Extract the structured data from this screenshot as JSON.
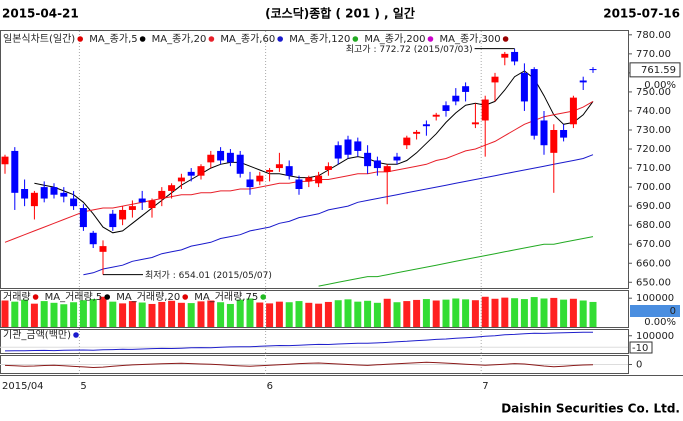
{
  "header": {
    "start": "2015-04-21",
    "title": "(코스닥)종합 ( 201 ) , 일간",
    "end": "2015-07-16"
  },
  "footer": "Daishin Securities Co. Ltd.",
  "chart_data": [
    {
      "type": "candlestick",
      "legend_title": "일본식차트(일간)",
      "legend_color": "#e00000",
      "up_color": "#ff0000",
      "down_color": "#0000ff",
      "categories": [
        "2015/04",
        null,
        null,
        null,
        null,
        null,
        null,
        null,
        "5",
        null,
        null,
        null,
        null,
        null,
        null,
        null,
        null,
        null,
        null,
        null,
        null,
        null,
        null,
        null,
        null,
        null,
        null,
        "6",
        null,
        null,
        null,
        null,
        null,
        null,
        null,
        null,
        null,
        null,
        null,
        null,
        null,
        null,
        null,
        null,
        null,
        null,
        null,
        null,
        null,
        "7",
        null,
        null,
        null,
        null,
        null,
        null,
        null,
        null,
        null,
        null,
        null
      ],
      "open": [
        712,
        719,
        699,
        690,
        700,
        700,
        697,
        694,
        689,
        676,
        666,
        686,
        683,
        688,
        694,
        689,
        694,
        698,
        703,
        708,
        706,
        713,
        719,
        718,
        717,
        704,
        703,
        708,
        710,
        711,
        704,
        703,
        702,
        709,
        722,
        725,
        724,
        718,
        714,
        708,
        716,
        722,
        728,
        733,
        737,
        743,
        748,
        753,
        733,
        735,
        755,
        768,
        771,
        760,
        762,
        735,
        718,
        730,
        733,
        756,
        762
      ],
      "high": [
        717,
        721,
        704,
        698,
        703,
        702,
        700,
        698,
        691,
        677,
        672,
        688,
        690,
        693,
        698,
        694,
        700,
        702,
        707,
        710,
        712,
        719,
        721,
        720,
        719,
        708,
        708,
        710,
        718,
        714,
        706,
        706,
        708,
        713,
        724,
        727,
        726,
        722,
        716,
        712,
        718,
        727,
        730,
        735,
        739,
        745,
        752,
        755,
        744,
        748,
        760,
        771,
        772.72,
        765,
        763,
        740,
        733,
        733,
        748,
        758,
        763
      ],
      "low": [
        707,
        688,
        690,
        683,
        692,
        694,
        692,
        688,
        677,
        668,
        654.01,
        677,
        680,
        684,
        688,
        684,
        690,
        694,
        699,
        703,
        704,
        710,
        712,
        711,
        705,
        696,
        701,
        703,
        708,
        704,
        696,
        700,
        700,
        706,
        712,
        715,
        716,
        707,
        706,
        691,
        712,
        720,
        725,
        727,
        735,
        737,
        743,
        745,
        731,
        716,
        745,
        764,
        764,
        740,
        725,
        717,
        697,
        724,
        731,
        751,
        760
      ],
      "close": [
        716,
        697,
        694,
        697,
        694,
        696,
        695,
        690,
        679,
        670,
        669,
        679,
        688,
        690,
        692,
        693,
        698,
        701,
        705,
        706,
        711,
        717,
        714,
        713,
        707,
        700,
        706,
        709,
        712,
        706,
        699,
        705,
        706,
        711,
        715,
        717,
        719,
        711,
        710,
        711,
        714,
        726,
        729,
        732,
        738,
        740,
        745,
        750,
        734,
        746,
        758,
        770,
        766,
        745,
        727,
        722,
        730,
        726,
        747,
        755,
        761.59
      ],
      "series": [
        {
          "name": "MA_종가,5",
          "color": "#000000",
          "values": [
            null,
            null,
            null,
            702,
            701,
            700,
            698,
            696,
            692,
            686,
            679,
            676,
            677,
            681,
            685,
            689,
            693,
            697,
            701,
            704,
            707,
            710,
            712,
            713,
            713,
            711,
            709,
            707,
            707,
            706,
            705,
            705,
            706,
            709,
            712,
            715,
            716,
            715,
            713,
            712,
            712,
            714,
            718,
            723,
            728,
            734,
            739,
            743,
            744,
            743,
            745,
            751,
            758,
            761,
            757,
            748,
            738,
            733,
            734,
            738,
            745
          ]
        },
        {
          "name": "MA_종가,20",
          "color": "#e8202a",
          "values": [
            671,
            673,
            675,
            677,
            679,
            681,
            683,
            685,
            687,
            688,
            689,
            689,
            690,
            691,
            692,
            693,
            694,
            695,
            696,
            696,
            697,
            697,
            698,
            698,
            699,
            699,
            700,
            701,
            702,
            702,
            703,
            703,
            704,
            704,
            705,
            706,
            707,
            707,
            708,
            708,
            709,
            710,
            711,
            712,
            714,
            715,
            717,
            719,
            720,
            722,
            724,
            727,
            730,
            733,
            735,
            737,
            738,
            739,
            740,
            742,
            745
          ]
        },
        {
          "name": "MA_종가,60",
          "color": "#1a1acc",
          "values": [
            null,
            null,
            null,
            null,
            null,
            null,
            null,
            null,
            654,
            655,
            657,
            658,
            659,
            661,
            662,
            663,
            665,
            666,
            667,
            669,
            670,
            671,
            673,
            674,
            675,
            677,
            678,
            679,
            681,
            682,
            684,
            685,
            686,
            688,
            689,
            690,
            692,
            693,
            694,
            695,
            696,
            697,
            698,
            699,
            700,
            701,
            702,
            703,
            704,
            705,
            706,
            707,
            708,
            709,
            710,
            711,
            712,
            713,
            714,
            715,
            717
          ]
        },
        {
          "name": "MA_종가,120",
          "color": "#22aa22",
          "values": [
            null,
            null,
            null,
            null,
            null,
            null,
            null,
            null,
            null,
            null,
            null,
            null,
            null,
            null,
            null,
            null,
            null,
            null,
            null,
            null,
            null,
            null,
            null,
            null,
            null,
            null,
            null,
            null,
            null,
            null,
            null,
            null,
            648,
            649,
            650,
            651,
            652,
            653,
            653,
            654,
            655,
            656,
            657,
            658,
            659,
            660,
            661,
            662,
            663,
            664,
            665,
            666,
            667,
            668,
            669,
            670,
            670,
            671,
            672,
            673,
            674
          ]
        }
      ],
      "legend_extra": [
        {
          "name": "MA_종가,200",
          "color": "#cc00cc"
        },
        {
          "name": "MA_종가,300",
          "color": "#990000"
        }
      ],
      "annotations": [
        {
          "label": "최고가 : 772.72 (2015/07/03)",
          "value": 772.72,
          "color": "#e00000"
        },
        {
          "label": "최저가 : 654.01 (2015/05/07)",
          "value": 654.01,
          "color": "#1a1acc"
        }
      ],
      "last": 761.59,
      "change": "0.00%",
      "ylim": [
        647,
        782
      ],
      "yticks": [
        {
          "value": 780,
          "label": "780.00"
        },
        {
          "value": 770,
          "label": "770.00"
        },
        {
          "value": 760,
          "label": "760.00"
        },
        {
          "value": 750,
          "label": "750.00"
        },
        {
          "value": 740,
          "label": "740.00"
        },
        {
          "value": 730,
          "label": "730.00"
        },
        {
          "value": 720,
          "label": "720.00"
        },
        {
          "value": 710,
          "label": "710.00"
        },
        {
          "value": 700,
          "label": "700.00"
        },
        {
          "value": 690,
          "label": "690.00"
        },
        {
          "value": 680,
          "label": "680.00"
        },
        {
          "value": 670,
          "label": "670.00"
        },
        {
          "value": 660,
          "label": "660.00"
        },
        {
          "value": 650,
          "label": "650.00"
        }
      ]
    },
    {
      "type": "bar",
      "legend_title": "거래량",
      "legend_color": "#e00000",
      "up_color": "#ff2020",
      "down_color": "#33dd33",
      "legend_extra": [
        {
          "name": "MA_거래량,5",
          "color": "#000000"
        },
        {
          "name": "MA_거래량,20",
          "color": "#e00000"
        },
        {
          "name": "MA_거래량,75",
          "color": "#22bb22"
        }
      ],
      "values": [
        92000,
        88000,
        95000,
        81000,
        90000,
        84000,
        79000,
        86000,
        93000,
        97000,
        105000,
        88000,
        82000,
        90000,
        85000,
        80000,
        87000,
        91000,
        84000,
        83000,
        89000,
        92000,
        86000,
        80000,
        95000,
        99000,
        85000,
        82000,
        88000,
        86000,
        90000,
        84000,
        81000,
        87000,
        93000,
        96000,
        88000,
        91000,
        84000,
        98000,
        86000,
        90000,
        94000,
        97000,
        92000,
        95000,
        99000,
        96000,
        93000,
        105000,
        98000,
        102000,
        100000,
        97000,
        104000,
        99000,
        101000,
        95000,
        98000,
        92000,
        87000
      ],
      "ylim": [
        0,
        125000
      ],
      "yticks": [
        100000
      ],
      "current": "0",
      "change": "0.00%"
    },
    {
      "type": "line",
      "legend_title": "기관_금액(백만)",
      "legend_color": "#1a1acc",
      "color": "#2020cc",
      "values": [
        -32000,
        -30000,
        -31000,
        -28000,
        -27000,
        -29000,
        -26000,
        -25000,
        -24000,
        -26000,
        -22000,
        -20000,
        -18000,
        -19000,
        -15000,
        -12000,
        -10000,
        -11000,
        -8000,
        -5000,
        -3000,
        -4000,
        0,
        3000,
        5000,
        4000,
        8000,
        12000,
        15000,
        14000,
        18000,
        22000,
        25000,
        24000,
        28000,
        32000,
        35000,
        34000,
        38000,
        42000,
        48000,
        52000,
        58000,
        62000,
        68000,
        72000,
        78000,
        82000,
        88000,
        95000,
        100000,
        108000,
        112000,
        118000,
        122000,
        120000,
        124000,
        126000,
        128000,
        130000,
        131000
      ],
      "ylim": [
        -50000,
        150000
      ],
      "yticks": [
        100000
      ],
      "current": "-10"
    },
    {
      "type": "line",
      "color": "#8b1a1a",
      "values": [
        -10,
        -15,
        -20,
        -18,
        -12,
        -8,
        -15,
        -22,
        -28,
        -35,
        -30,
        -20,
        -12,
        -5,
        0,
        5,
        8,
        12,
        15,
        10,
        6,
        2,
        -4,
        -10,
        -16,
        -20,
        -14,
        -8,
        -2,
        4,
        10,
        14,
        18,
        12,
        6,
        0,
        -6,
        -10,
        -4,
        2,
        8,
        14,
        20,
        26,
        22,
        16,
        10,
        4,
        -2,
        -8,
        -4,
        4,
        10,
        6,
        -6,
        -18,
        -26,
        -20,
        -12,
        -6,
        -2
      ],
      "ylim": [
        -100,
        100
      ],
      "yticks": [
        0
      ]
    }
  ]
}
